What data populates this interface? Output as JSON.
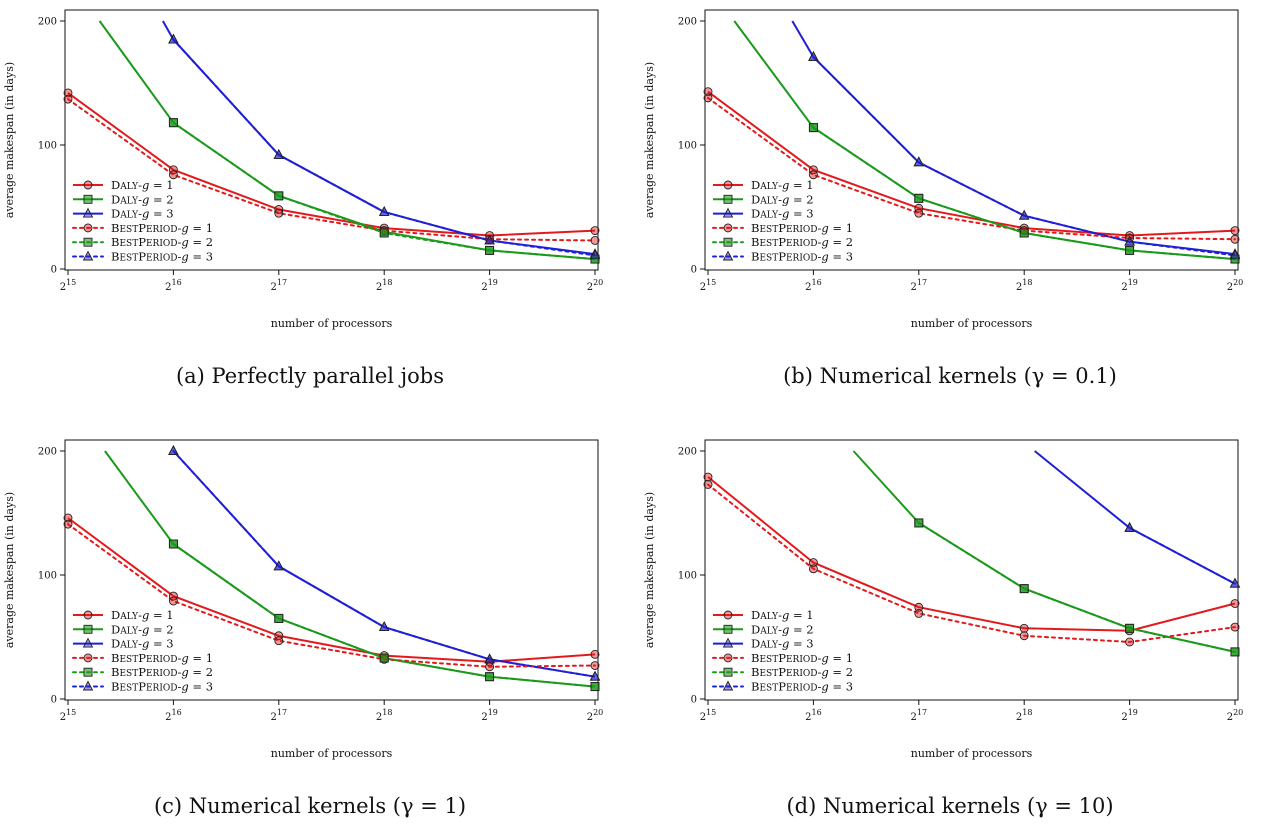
{
  "colors": {
    "g1": "#e31a1c",
    "g2": "#1a9a1a",
    "g3": "#1f1fd6"
  },
  "panels": [
    {
      "caption": "(a) Perfectly parallel jobs"
    },
    {
      "caption": "(b) Numerical kernels (γ = 0.1)"
    },
    {
      "caption": "(c) Numerical kernels (γ = 1)"
    },
    {
      "caption": "(d) Numerical kernels (γ = 10)"
    }
  ],
  "chart_data": [
    {
      "type": "line",
      "xlabel": "number of processors",
      "ylabel": "average makespan (in days)",
      "xticks": [
        "15",
        "16",
        "17",
        "18",
        "19",
        "20"
      ],
      "xtick_base": "2",
      "yticks": [
        0,
        100,
        200
      ],
      "ylim": [
        0,
        200
      ],
      "x": [
        15,
        16,
        17,
        18,
        19,
        20
      ],
      "legend_position": "left-bottom",
      "series": [
        {
          "name": "DALY-g = 1",
          "group": "g1",
          "style": "solid",
          "marker": "circle",
          "values": [
            142,
            80,
            48,
            33,
            27,
            31
          ]
        },
        {
          "name": "DALY-g = 2",
          "group": "g2",
          "style": "solid",
          "marker": "square",
          "values": [
            null,
            118,
            59,
            30,
            15,
            8
          ]
        },
        {
          "name": "DALY-g = 3",
          "group": "g3",
          "style": "solid",
          "marker": "triangle",
          "values": [
            null,
            185,
            92,
            46,
            23,
            12
          ]
        },
        {
          "name": "BESTPERIOD-g = 1",
          "group": "g1",
          "style": "dotted",
          "marker": "circle",
          "values": [
            137,
            76,
            45,
            31,
            24,
            23
          ]
        },
        {
          "name": "BESTPERIOD-g = 2",
          "group": "g2",
          "style": "dotted",
          "marker": "square",
          "values": [
            null,
            118,
            59,
            29,
            15,
            8
          ]
        },
        {
          "name": "BESTPERIOD-g = 3",
          "group": "g3",
          "style": "dotted",
          "marker": "triangle",
          "values": [
            null,
            185,
            92,
            46,
            23,
            11
          ]
        }
      ],
      "offscreen_starts": {
        "g2": [
          15.3,
          200
        ],
        "g3": [
          15.9,
          200
        ]
      }
    },
    {
      "type": "line",
      "xlabel": "number of processors",
      "ylabel": "average makespan (in days)",
      "xticks": [
        "15",
        "16",
        "17",
        "18",
        "19",
        "20"
      ],
      "xtick_base": "2",
      "yticks": [
        0,
        100,
        200
      ],
      "ylim": [
        0,
        200
      ],
      "x": [
        15,
        16,
        17,
        18,
        19,
        20
      ],
      "legend_position": "left-bottom",
      "series": [
        {
          "name": "DALY-g = 1",
          "group": "g1",
          "style": "solid",
          "marker": "circle",
          "values": [
            143,
            80,
            49,
            33,
            27,
            31
          ]
        },
        {
          "name": "DALY-g = 2",
          "group": "g2",
          "style": "solid",
          "marker": "square",
          "values": [
            null,
            114,
            57,
            29,
            15,
            8
          ]
        },
        {
          "name": "DALY-g = 3",
          "group": "g3",
          "style": "solid",
          "marker": "triangle",
          "values": [
            null,
            171,
            86,
            43,
            22,
            12
          ]
        },
        {
          "name": "BESTPERIOD-g = 1",
          "group": "g1",
          "style": "dotted",
          "marker": "circle",
          "values": [
            138,
            76,
            45,
            31,
            25,
            24
          ]
        },
        {
          "name": "BESTPERIOD-g = 2",
          "group": "g2",
          "style": "dotted",
          "marker": "square",
          "values": [
            null,
            114,
            57,
            29,
            15,
            8
          ]
        },
        {
          "name": "BESTPERIOD-g = 3",
          "group": "g3",
          "style": "dotted",
          "marker": "triangle",
          "values": [
            null,
            171,
            86,
            43,
            22,
            11
          ]
        }
      ],
      "offscreen_starts": {
        "g2": [
          15.25,
          200
        ],
        "g3": [
          15.8,
          200
        ]
      }
    },
    {
      "type": "line",
      "xlabel": "number of processors",
      "ylabel": "average makespan (in days)",
      "xticks": [
        "15",
        "16",
        "17",
        "18",
        "19",
        "20"
      ],
      "xtick_base": "2",
      "yticks": [
        0,
        100,
        200
      ],
      "ylim": [
        0,
        200
      ],
      "x": [
        15,
        16,
        17,
        18,
        19,
        20
      ],
      "legend_position": "left-bottom",
      "series": [
        {
          "name": "DALY-g = 1",
          "group": "g1",
          "style": "solid",
          "marker": "circle",
          "values": [
            146,
            83,
            51,
            35,
            30,
            36
          ]
        },
        {
          "name": "DALY-g = 2",
          "group": "g2",
          "style": "solid",
          "marker": "square",
          "values": [
            null,
            125,
            65,
            33,
            18,
            10
          ]
        },
        {
          "name": "DALY-g = 3",
          "group": "g3",
          "style": "solid",
          "marker": "triangle",
          "values": [
            null,
            200,
            107,
            58,
            32,
            18
          ]
        },
        {
          "name": "BESTPERIOD-g = 1",
          "group": "g1",
          "style": "dotted",
          "marker": "circle",
          "values": [
            141,
            79,
            47,
            32,
            26,
            27
          ]
        },
        {
          "name": "BESTPERIOD-g = 2",
          "group": "g2",
          "style": "dotted",
          "marker": "square",
          "values": [
            null,
            125,
            65,
            33,
            18,
            10
          ]
        },
        {
          "name": "BESTPERIOD-g = 3",
          "group": "g3",
          "style": "dotted",
          "marker": "triangle",
          "values": [
            null,
            200,
            107,
            58,
            32,
            18
          ]
        }
      ],
      "offscreen_starts": {
        "g2": [
          15.35,
          200
        ]
      }
    },
    {
      "type": "line",
      "xlabel": "number of processors",
      "ylabel": "average makespan (in days)",
      "xticks": [
        "15",
        "16",
        "17",
        "18",
        "19",
        "20"
      ],
      "xtick_base": "2",
      "yticks": [
        0,
        100,
        200
      ],
      "ylim": [
        0,
        200
      ],
      "x": [
        15,
        16,
        17,
        18,
        19,
        20
      ],
      "legend_position": "left-bottom",
      "series": [
        {
          "name": "DALY-g = 1",
          "group": "g1",
          "style": "solid",
          "marker": "circle",
          "values": [
            179,
            110,
            74,
            57,
            55,
            77
          ]
        },
        {
          "name": "DALY-g = 2",
          "group": "g2",
          "style": "solid",
          "marker": "square",
          "values": [
            null,
            null,
            142,
            89,
            57,
            38
          ]
        },
        {
          "name": "DALY-g = 3",
          "group": "g3",
          "style": "solid",
          "marker": "triangle",
          "values": [
            null,
            null,
            null,
            null,
            138,
            93
          ]
        },
        {
          "name": "BESTPERIOD-g = 1",
          "group": "g1",
          "style": "dotted",
          "marker": "circle",
          "values": [
            173,
            105,
            69,
            51,
            46,
            58
          ]
        },
        {
          "name": "BESTPERIOD-g = 2",
          "group": "g2",
          "style": "dotted",
          "marker": "square",
          "values": [
            null,
            null,
            142,
            89,
            57,
            38
          ]
        },
        {
          "name": "BESTPERIOD-g = 3",
          "group": "g3",
          "style": "dotted",
          "marker": "triangle",
          "values": [
            null,
            null,
            null,
            null,
            138,
            93
          ]
        }
      ],
      "offscreen_starts": {
        "g2": [
          16.38,
          200
        ],
        "g3": [
          18.1,
          200
        ]
      }
    }
  ]
}
